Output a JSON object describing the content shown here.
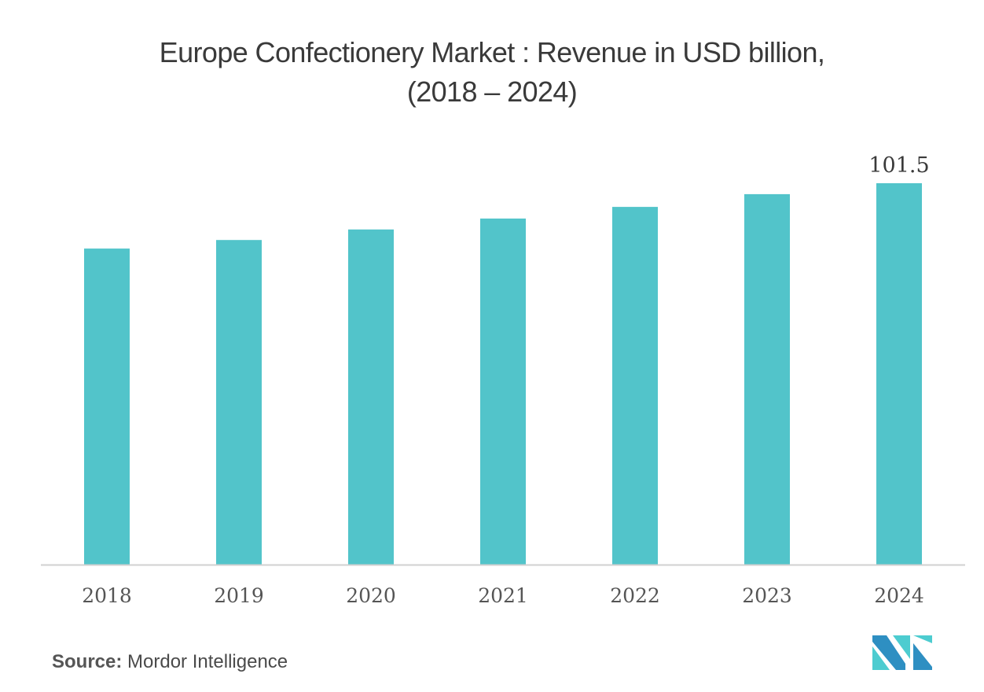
{
  "title": {
    "line1": "Europe Confectionery Market : Revenue in USD billion,",
    "line2": "(2018 – 2024)"
  },
  "source": {
    "label": "Source:",
    "name": "Mordor Intelligence"
  },
  "logo": {
    "icon": "mordor-intelligence-logo-icon"
  },
  "colors": {
    "bar": "#52c4ca",
    "axis": "#d0d0d0",
    "tick_text": "#555555",
    "label_text": "#3a3a3a",
    "logo_dark": "#2e8fc2",
    "logo_light": "#4dccd0"
  },
  "chart_data": {
    "type": "bar",
    "title": "Europe Confectionery Market : Revenue in USD billion, (2018 – 2024)",
    "xlabel": "",
    "ylabel": "",
    "categories": [
      "2018",
      "2019",
      "2020",
      "2021",
      "2022",
      "2023",
      "2024"
    ],
    "values": [
      84.1,
      86.4,
      89.2,
      92.1,
      95.2,
      98.6,
      101.5
    ],
    "data_labels": [
      {
        "category": "2024",
        "text": "101.5"
      }
    ],
    "ylim": [
      0,
      101.5
    ],
    "grid": false,
    "legend": "none"
  }
}
